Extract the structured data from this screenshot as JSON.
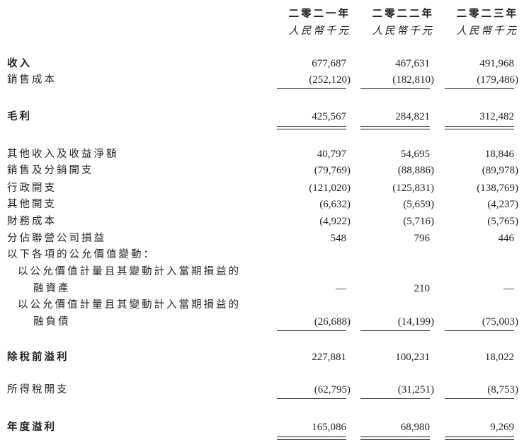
{
  "columns": [
    {
      "year": "二零二一年",
      "unit": "人民幣千元"
    },
    {
      "year": "二零二二年",
      "unit": "人民幣千元"
    },
    {
      "year": "二零二三年",
      "unit": "人民幣千元"
    }
  ],
  "rows": [
    {
      "label": "收入",
      "bold": true,
      "values": [
        "677,687",
        "467,631",
        "491,968"
      ]
    },
    {
      "label": "銷售成本",
      "values": [
        "(252,120)",
        "(182,810)",
        "(179,486)"
      ],
      "rule": "single"
    },
    {
      "label": "毛利",
      "bold": true,
      "values": [
        "425,567",
        "284,821",
        "312,482"
      ],
      "rule": "double"
    },
    {
      "label": "其他收入及收益淨額",
      "values": [
        "40,797",
        "54,695",
        "18,846"
      ]
    },
    {
      "label": "銷售及分銷開支",
      "values": [
        "(79,769)",
        "(88,886)",
        "(89,978)"
      ]
    },
    {
      "label": "行政開支",
      "values": [
        "(121,020)",
        "(125,831)",
        "(138,769)"
      ]
    },
    {
      "label": "其他開支",
      "values": [
        "(6,632)",
        "(5,659)",
        "(4,237)"
      ]
    },
    {
      "label": "財務成本",
      "values": [
        "(4,922)",
        "(5,716)",
        "(5,765)"
      ]
    },
    {
      "label": "分佔聯營公司損益",
      "values": [
        "548",
        "796",
        "446"
      ]
    },
    {
      "label": "以下各項的公允價值變動：",
      "values": []
    },
    {
      "label": "以公允價值計量且其變動計入當期損益的",
      "indent": 1,
      "values": []
    },
    {
      "label": "融資產",
      "indent": 2,
      "values": [
        "—",
        "210",
        "—"
      ]
    },
    {
      "label": "以公允價值計量且其變動計入當期損益的",
      "indent": 1,
      "values": []
    },
    {
      "label": "融負債",
      "indent": 2,
      "values": [
        "(26,688)",
        "(14,199)",
        "(75,003)"
      ],
      "rule": "single"
    },
    {
      "label": "除稅前溢利",
      "bold": true,
      "values": [
        "227,881",
        "100,231",
        "18,022"
      ]
    },
    {
      "label": "所得稅開支",
      "values": [
        "(62,795)",
        "(31,251)",
        "(8,753)"
      ],
      "rule": "single"
    },
    {
      "label": "年度溢利",
      "bold": true,
      "values": [
        "165,086",
        "68,980",
        "9,269"
      ],
      "rule": "double"
    }
  ]
}
